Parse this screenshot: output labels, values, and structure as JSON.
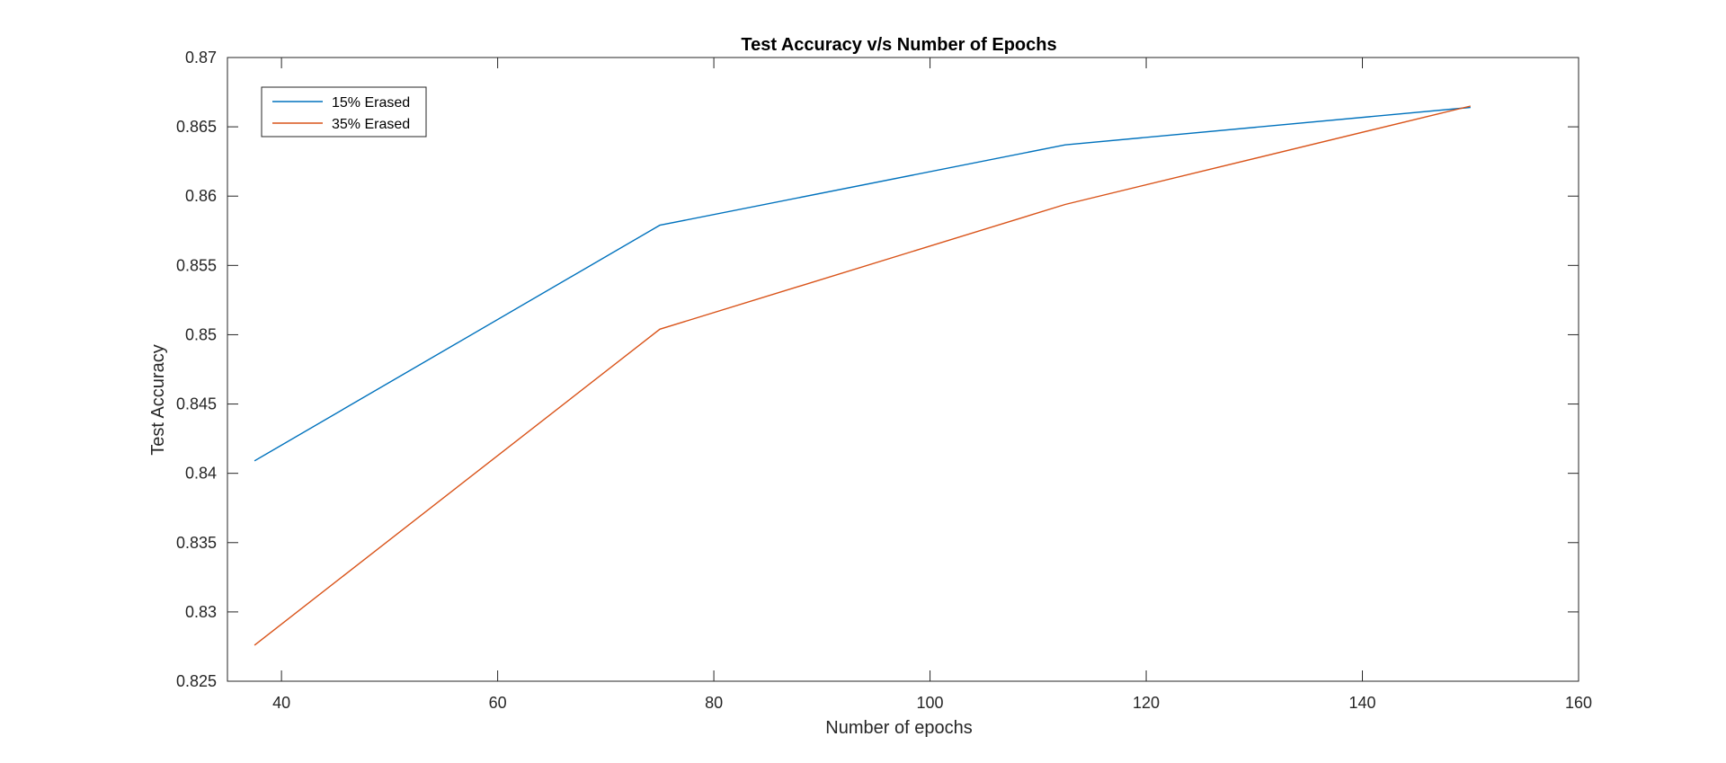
{
  "chart_data": {
    "type": "line",
    "title": "Test Accuracy v/s Number of Epochs",
    "xlabel": "Number of epochs",
    "ylabel": "Test Accuracy",
    "xlim": [
      35,
      160
    ],
    "ylim": [
      0.825,
      0.87
    ],
    "xticks": [
      40,
      60,
      80,
      100,
      120,
      140,
      160
    ],
    "yticks": [
      0.825,
      0.83,
      0.835,
      0.84,
      0.845,
      0.85,
      0.855,
      0.86,
      0.865,
      0.87
    ],
    "ytick_labels": [
      "0.825",
      "0.83",
      "0.835",
      "0.84",
      "0.845",
      "0.85",
      "0.855",
      "0.86",
      "0.865",
      "0.87"
    ],
    "x": [
      37.5,
      75,
      112.5,
      150
    ],
    "grid": false,
    "legend": "top-left",
    "series": [
      {
        "name": "15% Erased",
        "color": "#0072BD",
        "values": [
          0.8409,
          0.8579,
          0.8637,
          0.8664
        ]
      },
      {
        "name": "35% Erased",
        "color": "#D95319",
        "values": [
          0.8276,
          0.8504,
          0.8594,
          0.8665
        ]
      }
    ]
  }
}
